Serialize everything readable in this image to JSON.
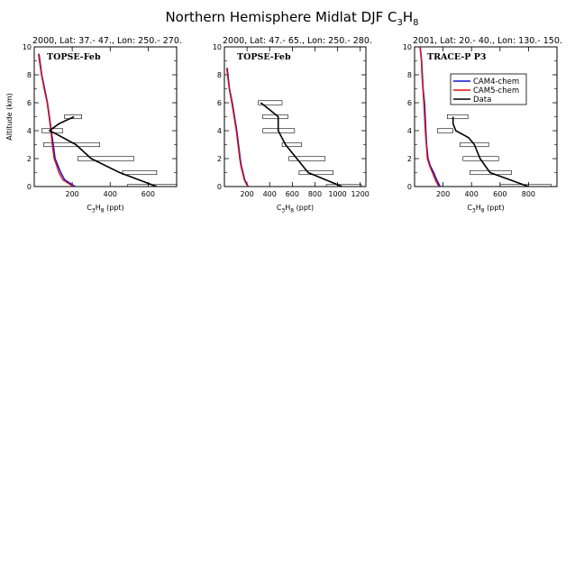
{
  "figure": {
    "title_main": "Northern Hemisphere Midlat DJF C",
    "title_sub1": "3",
    "title_mid": "H",
    "title_sub2": "8"
  },
  "colors": {
    "cam4": "#1010d0",
    "cam5": "#e01010",
    "data": "#000000"
  },
  "chart_data": [
    {
      "type": "line",
      "title": "2000, Lat: 37.- 47., Lon: 250.- 270.",
      "campaign": "TOPSE-Feb",
      "xlabel": "C3H8 (ppt)",
      "ylabel": "Altitude (km)",
      "xlim": [
        0,
        750
      ],
      "xticks": [
        200,
        400,
        600
      ],
      "ylim": [
        0,
        10
      ],
      "yticks": [
        0,
        2,
        4,
        6,
        8,
        10
      ],
      "series": [
        {
          "name": "CAM4-chem",
          "x": [
            215,
            160,
            140,
            125,
            110,
            100,
            90,
            80,
            70,
            55,
            40,
            25
          ],
          "y": [
            0,
            0.5,
            1,
            1.5,
            2,
            3,
            4,
            5,
            6,
            7,
            8,
            9.5
          ]
        },
        {
          "name": "CAM5-chem",
          "x": [
            205,
            150,
            130,
            118,
            105,
            95,
            88,
            78,
            68,
            52,
            38,
            22
          ],
          "y": [
            0,
            0.5,
            1,
            1.5,
            2,
            3,
            4,
            5,
            6,
            7,
            8,
            9.5
          ]
        },
        {
          "name": "Data",
          "x": [
            645,
            450,
            300,
            220,
            125,
            80,
            130,
            210
          ],
          "y": [
            0,
            1,
            2,
            3,
            3.7,
            4,
            4.5,
            5
          ]
        }
      ],
      "error_bars": [
        {
          "y": 5,
          "x0": 160,
          "x1": 250
        },
        {
          "y": 4,
          "x0": 40,
          "x1": 150
        },
        {
          "y": 3,
          "x0": 50,
          "x1": 345
        },
        {
          "y": 2,
          "x0": 230,
          "x1": 525
        },
        {
          "y": 1,
          "x0": 465,
          "x1": 645
        },
        {
          "y": 0,
          "x0": 490,
          "x1": 800
        }
      ]
    },
    {
      "type": "line",
      "title": "2000, Lat: 47.- 65., Lon: 250.- 280.",
      "campaign": "TOPSE-Feb",
      "xlabel": "C3H8 (ppt)",
      "ylabel": "Altitude (km)",
      "xlim": [
        0,
        1250
      ],
      "xticks": [
        200,
        400,
        600,
        800,
        1000,
        1200
      ],
      "ylim": [
        0,
        10
      ],
      "yticks": [
        0,
        2,
        4,
        6,
        8,
        10
      ],
      "series": [
        {
          "name": "CAM4-chem",
          "x": [
            210,
            180,
            165,
            150,
            140,
            125,
            110,
            90,
            70,
            45,
            25
          ],
          "y": [
            0,
            0.5,
            1,
            1.5,
            2,
            3,
            4,
            5,
            6,
            7,
            8.5
          ]
        },
        {
          "name": "CAM5-chem",
          "x": [
            205,
            175,
            160,
            145,
            135,
            120,
            105,
            85,
            65,
            42,
            20
          ],
          "y": [
            0,
            0.5,
            1,
            1.5,
            2,
            3,
            4,
            5,
            6,
            7,
            8.5
          ]
        },
        {
          "name": "Data",
          "x": [
            1040,
            740,
            640,
            540,
            475,
            475,
            400,
            320
          ],
          "y": [
            0,
            1,
            2,
            3,
            4,
            5,
            5.5,
            6
          ]
        }
      ],
      "error_bars": [
        {
          "y": 6,
          "x0": 300,
          "x1": 510
        },
        {
          "y": 5,
          "x0": 340,
          "x1": 560
        },
        {
          "y": 4,
          "x0": 340,
          "x1": 620
        },
        {
          "y": 3,
          "x0": 510,
          "x1": 680
        },
        {
          "y": 2,
          "x0": 570,
          "x1": 890
        },
        {
          "y": 1,
          "x0": 660,
          "x1": 960
        },
        {
          "y": 0,
          "x0": 900,
          "x1": 1210
        }
      ]
    },
    {
      "type": "line",
      "title": "2001, Lat: 20.- 40., Lon: 130.- 150.",
      "campaign": "TRACE-P P3",
      "xlabel": "C3H8 (ppt)",
      "ylabel": "Altitude (km)",
      "xlim": [
        0,
        1000
      ],
      "xticks": [
        200,
        400,
        600,
        800
      ],
      "ylim": [
        0,
        10
      ],
      "yticks": [
        0,
        2,
        4,
        6,
        8,
        10
      ],
      "legend": "top-right",
      "series": [
        {
          "name": "CAM4-chem",
          "x": [
            180,
            155,
            135,
            110,
            95,
            85,
            80,
            75,
            70,
            60,
            55,
            50,
            40
          ],
          "y": [
            0,
            0.5,
            1,
            1.5,
            2,
            3,
            4,
            5,
            6,
            7,
            8,
            9,
            10
          ]
        },
        {
          "name": "CAM5-chem",
          "x": [
            170,
            145,
            125,
            105,
            90,
            82,
            75,
            70,
            65,
            58,
            52,
            48,
            38
          ],
          "y": [
            0,
            0.5,
            1,
            1.5,
            2,
            3,
            4,
            5,
            6,
            7,
            8,
            9,
            10
          ]
        },
        {
          "name": "Data",
          "x": [
            800,
            530,
            460,
            420,
            380,
            290,
            270,
            270
          ],
          "y": [
            0,
            1,
            2,
            3,
            3.5,
            4,
            4.5,
            5
          ]
        }
      ],
      "error_bars": [
        {
          "y": 5,
          "x0": 230,
          "x1": 375
        },
        {
          "y": 4,
          "x0": 160,
          "x1": 270
        },
        {
          "y": 3,
          "x0": 320,
          "x1": 520
        },
        {
          "y": 2,
          "x0": 340,
          "x1": 590
        },
        {
          "y": 1,
          "x0": 390,
          "x1": 680
        },
        {
          "y": 0,
          "x0": 600,
          "x1": 960
        }
      ]
    }
  ]
}
